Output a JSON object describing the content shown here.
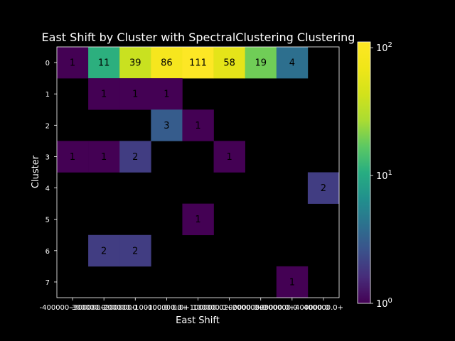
{
  "chart_data": {
    "type": "heatmap",
    "title": "East Shift by Cluster with SpectralClustering Clustering",
    "xlabel": "East Shift",
    "ylabel": "Cluster",
    "x_categories": [
      "-400000.0",
      "-300000.0",
      "-200000.0",
      "-100000.0",
      "0.0+",
      "100000.0",
      "200000.0",
      "300000.0",
      "400000.0+"
    ],
    "x_tick_labels": [
      "-400000-300000.0",
      "-300000-200000.0",
      "-200000-100000.0",
      "-100000.0+",
      "0.0+100000.0",
      "100000.0+200000.0",
      "200000.0+300000.0",
      "300000.0+400000.0",
      "400000.0+"
    ],
    "y_categories": [
      "0",
      "1",
      "2",
      "3",
      "4",
      "5",
      "6",
      "7"
    ],
    "values": [
      [
        1,
        11,
        39,
        86,
        111,
        58,
        19,
        4,
        null
      ],
      [
        null,
        1,
        1,
        1,
        null,
        null,
        null,
        null,
        null
      ],
      [
        null,
        null,
        null,
        3,
        1,
        null,
        null,
        null,
        null
      ],
      [
        1,
        1,
        2,
        null,
        null,
        1,
        null,
        null,
        null
      ],
      [
        null,
        null,
        null,
        null,
        null,
        null,
        null,
        null,
        2
      ],
      [
        null,
        null,
        null,
        null,
        1,
        null,
        null,
        null,
        null
      ],
      [
        null,
        2,
        2,
        null,
        null,
        null,
        null,
        null,
        null
      ],
      [
        null,
        null,
        null,
        null,
        null,
        null,
        null,
        1,
        null
      ]
    ],
    "colorbar": {
      "scale": "log",
      "range": [
        1,
        111
      ],
      "ticks": [
        {
          "value": 1,
          "base": "10",
          "exp": "0"
        },
        {
          "value": 10,
          "base": "10",
          "exp": "1"
        },
        {
          "value": 100,
          "base": "10",
          "exp": "2"
        }
      ],
      "colormap": "viridis"
    },
    "empty_color": "#000000",
    "text_color": "#000000"
  }
}
